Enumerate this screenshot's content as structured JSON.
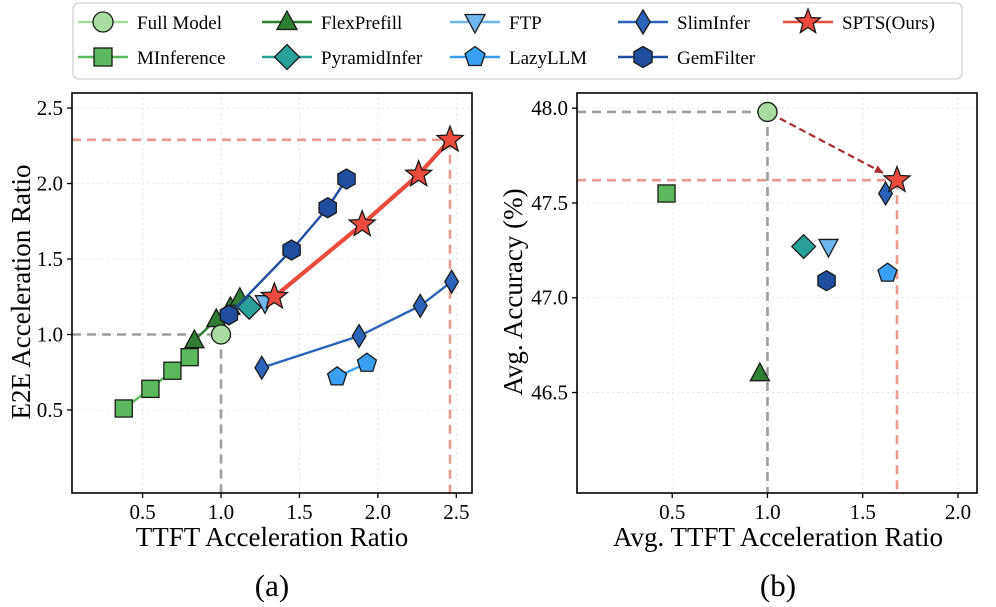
{
  "legend": [
    {
      "key": "full",
      "label": "Full Model",
      "marker": "circle",
      "fill": "#a9dca0",
      "line": "#a9dca0"
    },
    {
      "key": "flex",
      "label": "FlexPrefill",
      "marker": "triangle",
      "fill": "#2f7d32",
      "line": "#2f7d32"
    },
    {
      "key": "ftp",
      "label": "FTP",
      "marker": "triangle-down",
      "fill": "#6fb6ee",
      "line": "#6fb6ee"
    },
    {
      "key": "slim",
      "label": "SlimInfer",
      "marker": "diamond-thin",
      "fill": "#2a63b8",
      "line": "#2a63b8"
    },
    {
      "key": "spts",
      "label": "SPTS(Ours)",
      "marker": "star",
      "fill": "#ec4b3e",
      "line": "#e74c3c"
    },
    {
      "key": "minf",
      "label": "MInference",
      "marker": "square",
      "fill": "#5cb85c",
      "line": "#5cb85c"
    },
    {
      "key": "pyr",
      "label": "PyramidInfer",
      "marker": "diamond",
      "fill": "#2aa198",
      "line": "#2aa198"
    },
    {
      "key": "lazy",
      "label": "LazyLLM",
      "marker": "pentagon",
      "fill": "#3a9ff0",
      "line": "#3a9ff0"
    },
    {
      "key": "gem",
      "label": "GemFilter",
      "marker": "hexagon",
      "fill": "#1f4e9e",
      "line": "#1f4e9e"
    }
  ],
  "chart_data": [
    {
      "type": "line",
      "panel": "(a)",
      "xlabel": "TTFT Acceleration Ratio",
      "ylabel": "E2E Acceleration Ratio",
      "xlim": [
        0.05,
        2.6
      ],
      "ylim": [
        -0.05,
        2.6
      ],
      "xticks": [
        "0.5",
        "1.0",
        "1.5",
        "2.0",
        "2.5"
      ],
      "yticks": [
        "0.5",
        "1.0",
        "1.5",
        "2.0",
        "2.5"
      ],
      "grid": true,
      "reference_lines": [
        {
          "color": "#9e9e9e",
          "point": [
            1.0,
            1.0
          ]
        },
        {
          "color": "#e79a8e",
          "point": [
            2.46,
            2.29
          ]
        }
      ],
      "series": [
        {
          "key": "minf",
          "x": [
            0.38,
            0.55,
            0.69,
            0.8
          ],
          "y": [
            0.51,
            0.64,
            0.76,
            0.85
          ]
        },
        {
          "key": "flex",
          "x": [
            0.83,
            0.97,
            1.06,
            1.12
          ],
          "y": [
            0.96,
            1.1,
            1.18,
            1.24
          ]
        },
        {
          "key": "ftp",
          "x": [
            1.28
          ],
          "y": [
            1.21
          ]
        },
        {
          "key": "pyr",
          "x": [
            1.18
          ],
          "y": [
            1.18
          ]
        },
        {
          "key": "gem",
          "x": [
            1.05,
            1.45,
            1.68,
            1.8
          ],
          "y": [
            1.13,
            1.56,
            1.84,
            2.03
          ]
        },
        {
          "key": "slim",
          "x": [
            1.26,
            1.88,
            2.27,
            2.47
          ],
          "y": [
            0.78,
            0.99,
            1.19,
            1.35
          ]
        },
        {
          "key": "lazy",
          "x": [
            1.74,
            1.93
          ],
          "y": [
            0.72,
            0.81
          ]
        },
        {
          "key": "spts",
          "x": [
            1.34,
            1.9,
            2.26,
            2.46
          ],
          "y": [
            1.25,
            1.73,
            2.06,
            2.29
          ]
        },
        {
          "key": "full",
          "x": [
            1.0
          ],
          "y": [
            1.0
          ]
        }
      ]
    },
    {
      "type": "scatter",
      "panel": "(b)",
      "xlabel": "Avg. TTFT Acceleration Ratio",
      "ylabel": "Avg. Accuracy (%)",
      "xlim": [
        0.0,
        2.1
      ],
      "ylim": [
        45.97,
        48.08
      ],
      "xticks": [
        "0.5",
        "1.0",
        "1.5",
        "2.0"
      ],
      "yticks": [
        "46.5",
        "47.0",
        "47.5",
        "48.0"
      ],
      "grid": true,
      "reference_lines": [
        {
          "color": "#9e9e9e",
          "point": [
            1.0,
            47.98
          ]
        },
        {
          "color": "#e79a8e",
          "point": [
            1.68,
            47.62
          ]
        }
      ],
      "arrow": {
        "from": [
          1.0,
          47.98
        ],
        "to": [
          1.68,
          47.62
        ],
        "color": "#a83232"
      },
      "series": [
        {
          "key": "minf",
          "x": [
            0.47
          ],
          "y": [
            47.55
          ]
        },
        {
          "key": "flex",
          "x": [
            0.96
          ],
          "y": [
            46.6
          ]
        },
        {
          "key": "pyr",
          "x": [
            1.19
          ],
          "y": [
            47.27
          ]
        },
        {
          "key": "ftp",
          "x": [
            1.32
          ],
          "y": [
            47.27
          ]
        },
        {
          "key": "gem",
          "x": [
            1.31
          ],
          "y": [
            47.09
          ]
        },
        {
          "key": "lazy",
          "x": [
            1.63
          ],
          "y": [
            47.13
          ]
        },
        {
          "key": "slim",
          "x": [
            1.62
          ],
          "y": [
            47.55
          ]
        },
        {
          "key": "full",
          "x": [
            1.0
          ],
          "y": [
            47.98
          ]
        },
        {
          "key": "spts",
          "x": [
            1.68
          ],
          "y": [
            47.62
          ]
        }
      ]
    }
  ]
}
